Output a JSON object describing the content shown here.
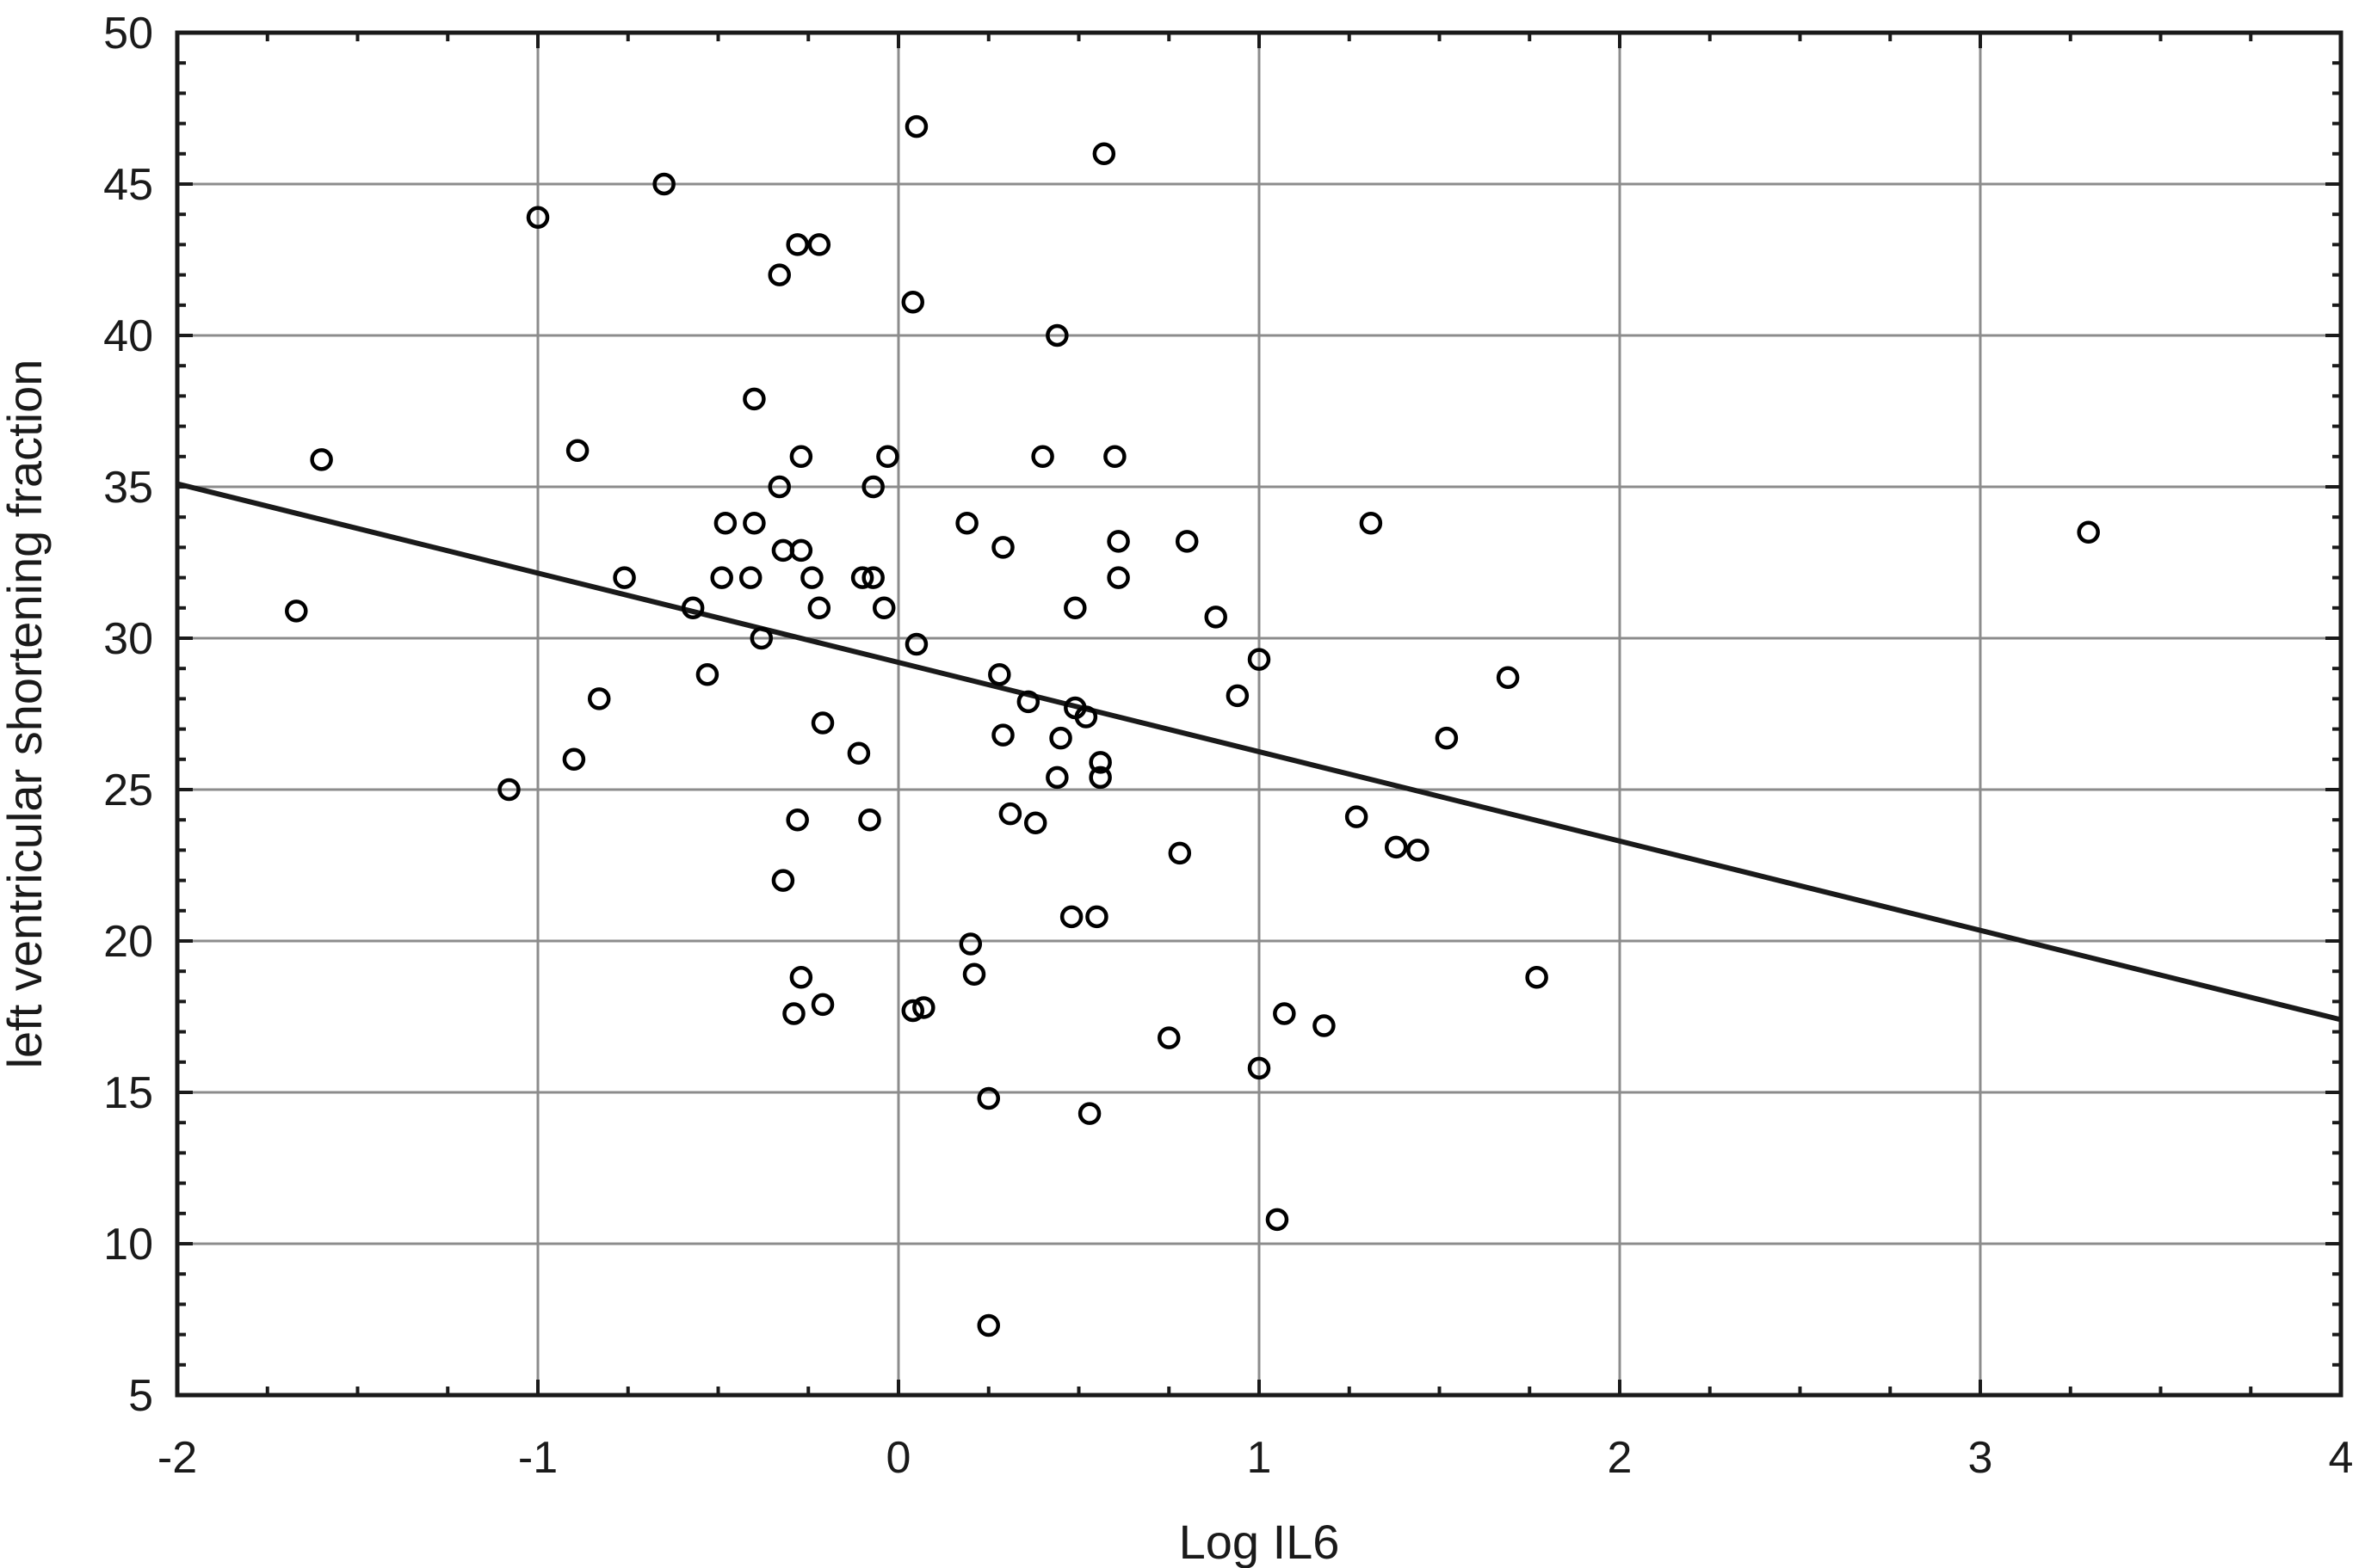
{
  "chart_data": {
    "type": "scatter",
    "title": "",
    "xlabel": "Log IL6",
    "ylabel": "left ventricular shortening fraction",
    "xlim": [
      -2,
      4
    ],
    "ylim": [
      5,
      50
    ],
    "x_ticks": [
      -2,
      -1,
      0,
      1,
      2,
      3,
      4
    ],
    "y_ticks": [
      5,
      10,
      15,
      20,
      25,
      30,
      35,
      40,
      45,
      50
    ],
    "x_minor_step": 0.25,
    "y_minor_step": 1,
    "grid": true,
    "legend": "none",
    "marker": {
      "shape": "open-circle",
      "radius_px": 11,
      "stroke_px": 4.5,
      "color": "#000000"
    },
    "colors": {
      "background": "#ffffff",
      "grid": "#8c8c8c",
      "axis": "#1a1a1a",
      "text": "#1a1a1a",
      "regression": "#1a1a1a"
    },
    "regression_line": {
      "x1": -2,
      "y1": 35.1,
      "x2": 4,
      "y2": 17.4
    },
    "points": [
      [
        -1.67,
        30.9
      ],
      [
        -1.6,
        35.9
      ],
      [
        -1.08,
        25.0
      ],
      [
        -1.0,
        43.9
      ],
      [
        -0.9,
        26.0
      ],
      [
        -0.89,
        36.2
      ],
      [
        -0.83,
        28.0
      ],
      [
        -0.76,
        32.0
      ],
      [
        -0.65,
        45.0
      ],
      [
        -0.57,
        31.0
      ],
      [
        -0.53,
        28.8
      ],
      [
        -0.49,
        32.0
      ],
      [
        -0.48,
        33.8
      ],
      [
        -0.41,
        32.0
      ],
      [
        -0.4,
        33.8
      ],
      [
        -0.4,
        37.9
      ],
      [
        -0.38,
        30.0
      ],
      [
        -0.33,
        42.0
      ],
      [
        -0.33,
        35.0
      ],
      [
        -0.32,
        32.9
      ],
      [
        -0.32,
        22.0
      ],
      [
        -0.29,
        17.6
      ],
      [
        -0.28,
        43.0
      ],
      [
        -0.28,
        24.0
      ],
      [
        -0.27,
        32.9
      ],
      [
        -0.27,
        36.0
      ],
      [
        -0.27,
        18.8
      ],
      [
        -0.24,
        32.0
      ],
      [
        -0.22,
        43.0
      ],
      [
        -0.22,
        31.0
      ],
      [
        -0.21,
        27.2
      ],
      [
        -0.21,
        17.9
      ],
      [
        -0.11,
        26.2
      ],
      [
        -0.1,
        32.0
      ],
      [
        -0.08,
        24.0
      ],
      [
        -0.07,
        32.0
      ],
      [
        -0.07,
        35.0
      ],
      [
        -0.04,
        31.0
      ],
      [
        -0.03,
        36.0
      ],
      [
        0.04,
        41.1
      ],
      [
        0.04,
        17.7
      ],
      [
        0.05,
        46.9
      ],
      [
        0.05,
        29.8
      ],
      [
        0.07,
        17.8
      ],
      [
        0.19,
        33.8
      ],
      [
        0.2,
        19.9
      ],
      [
        0.21,
        18.9
      ],
      [
        0.25,
        14.8
      ],
      [
        0.25,
        7.3
      ],
      [
        0.28,
        28.8
      ],
      [
        0.29,
        33.0
      ],
      [
        0.29,
        26.8
      ],
      [
        0.31,
        24.2
      ],
      [
        0.36,
        27.9
      ],
      [
        0.38,
        23.9
      ],
      [
        0.4,
        36.0
      ],
      [
        0.44,
        40.0
      ],
      [
        0.44,
        25.4
      ],
      [
        0.45,
        26.7
      ],
      [
        0.48,
        20.8
      ],
      [
        0.49,
        31.0
      ],
      [
        0.49,
        27.7
      ],
      [
        0.52,
        27.4
      ],
      [
        0.53,
        14.3
      ],
      [
        0.55,
        20.8
      ],
      [
        0.56,
        25.9
      ],
      [
        0.56,
        25.4
      ],
      [
        0.57,
        46.0
      ],
      [
        0.6,
        36.0
      ],
      [
        0.61,
        33.2
      ],
      [
        0.61,
        32.0
      ],
      [
        0.75,
        16.8
      ],
      [
        0.78,
        22.9
      ],
      [
        0.8,
        33.2
      ],
      [
        0.88,
        30.7
      ],
      [
        0.94,
        28.1
      ],
      [
        1.0,
        29.3
      ],
      [
        1.0,
        15.8
      ],
      [
        1.05,
        10.8
      ],
      [
        1.07,
        17.6
      ],
      [
        1.18,
        17.2
      ],
      [
        1.27,
        24.1
      ],
      [
        1.31,
        33.8
      ],
      [
        1.38,
        23.1
      ],
      [
        1.44,
        23.0
      ],
      [
        1.52,
        26.7
      ],
      [
        1.69,
        28.7
      ],
      [
        1.77,
        18.8
      ],
      [
        3.3,
        33.5
      ]
    ]
  }
}
